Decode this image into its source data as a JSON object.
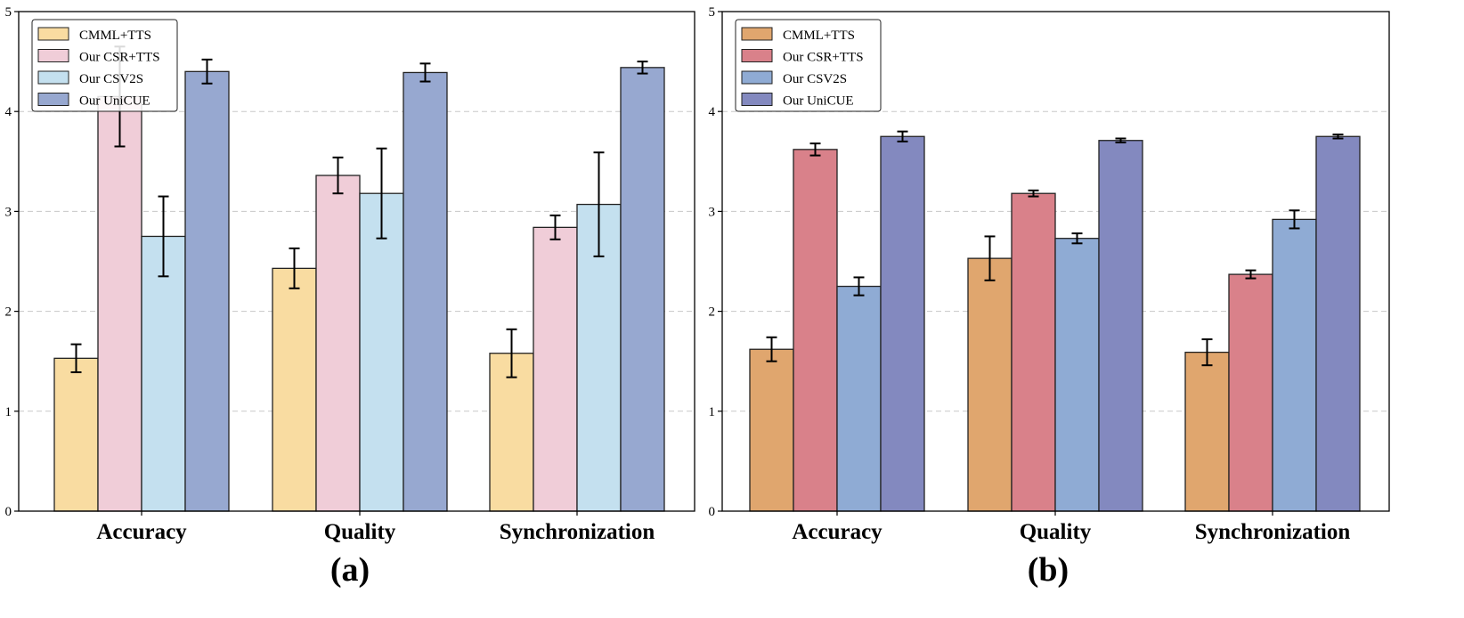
{
  "chart_data": [
    {
      "type": "bar",
      "panel_label": "(a)",
      "categories": [
        "Accuracy",
        "Quality",
        "Synchronization"
      ],
      "ylim": [
        0,
        5
      ],
      "yticks": [
        "0",
        "1",
        "2",
        "3",
        "4",
        "5"
      ],
      "grid": true,
      "legend_position": "top-left",
      "series": [
        {
          "name": "CMML+TTS",
          "color": "#f9dca1",
          "values": [
            1.53,
            2.43,
            1.58
          ],
          "errors": [
            0.14,
            0.2,
            0.24
          ]
        },
        {
          "name": "Our CSR+TTS",
          "color": "#f0cdd8",
          "values": [
            4.15,
            3.36,
            2.84
          ],
          "errors": [
            0.5,
            0.18,
            0.12
          ]
        },
        {
          "name": "Our CSV2S",
          "color": "#c4e0ef",
          "values": [
            2.75,
            3.18,
            3.07
          ],
          "errors": [
            0.4,
            0.45,
            0.52
          ]
        },
        {
          "name": "Our UniCUE",
          "color": "#97a8d0",
          "values": [
            4.4,
            4.39,
            4.44
          ],
          "errors": [
            0.12,
            0.09,
            0.06
          ]
        }
      ]
    },
    {
      "type": "bar",
      "panel_label": "(b)",
      "categories": [
        "Accuracy",
        "Quality",
        "Synchronization"
      ],
      "ylim": [
        0,
        5
      ],
      "yticks": [
        "0",
        "1",
        "2",
        "3",
        "4",
        "5"
      ],
      "grid": true,
      "legend_position": "top-left",
      "series": [
        {
          "name": "CMML+TTS",
          "color": "#e0a66e",
          "values": [
            1.62,
            2.53,
            1.59
          ],
          "errors": [
            0.12,
            0.22,
            0.13
          ]
        },
        {
          "name": "Our CSR+TTS",
          "color": "#d9818a",
          "values": [
            3.62,
            3.18,
            2.37
          ],
          "errors": [
            0.06,
            0.03,
            0.04
          ]
        },
        {
          "name": "Our CSV2S",
          "color": "#8fabd4",
          "values": [
            2.25,
            2.73,
            2.92
          ],
          "errors": [
            0.09,
            0.05,
            0.09
          ]
        },
        {
          "name": "Our UniCUE",
          "color": "#8389bf",
          "values": [
            3.75,
            3.71,
            3.75
          ],
          "errors": [
            0.05,
            0.02,
            0.02
          ]
        }
      ]
    }
  ]
}
